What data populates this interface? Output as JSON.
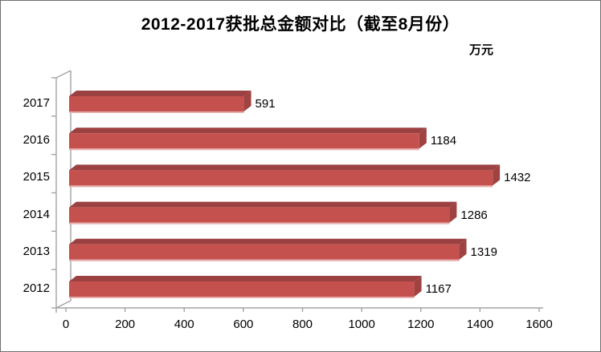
{
  "title": "2012-2017获批总金额对比（截至8月份）",
  "unit_label": "万元",
  "colors": {
    "bar_front": "#c4514e",
    "bar_top": "#9c4142",
    "bar_side": "#9e4341",
    "bar_bottom_edge": "#e5aeac",
    "axis_line": "#a3a3a3",
    "frame_border": "#6f6f6f",
    "text": "#000000",
    "background": "#ffffff"
  },
  "chart_data": {
    "type": "bar",
    "orientation": "horizontal",
    "style": "3d",
    "title": "2012-2017获批总金额对比（截至8月份）",
    "unit": "万元",
    "categories": [
      "2017",
      "2016",
      "2015",
      "2014",
      "2013",
      "2012"
    ],
    "values": [
      591,
      1184,
      1432,
      1286,
      1319,
      1167
    ],
    "data_labels": [
      "591",
      "1184",
      "1432",
      "1286",
      "1319",
      "1167"
    ],
    "x_ticks": [
      0,
      200,
      400,
      600,
      800,
      1000,
      1200,
      1400,
      1600
    ],
    "xlim": [
      0,
      1600
    ],
    "grid": false,
    "legend": false
  }
}
